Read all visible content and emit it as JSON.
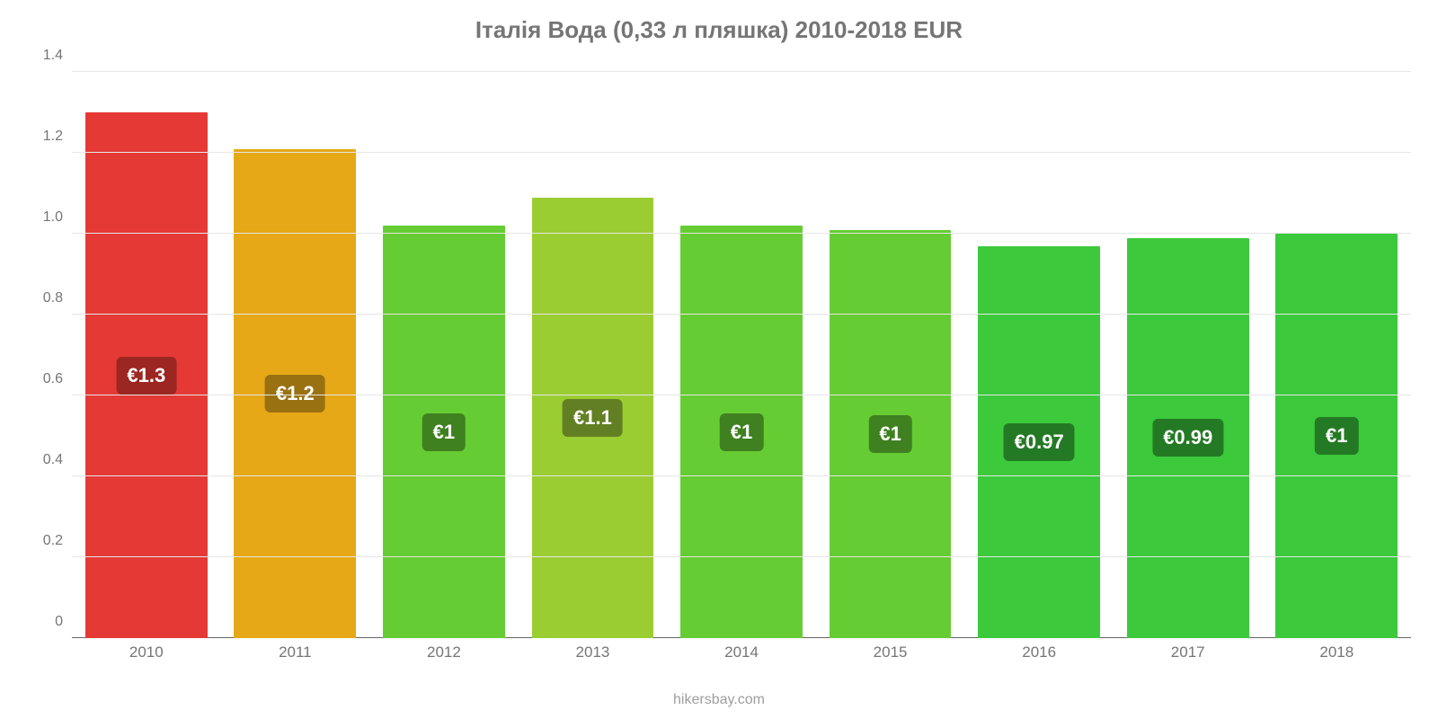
{
  "chart": {
    "type": "bar",
    "title": "Італія Вода (0,33 л пляшка) 2010-2018 EUR",
    "title_fontsize": 26,
    "title_color": "#757575",
    "attribution": "hikersbay.com",
    "attribution_fontsize": 16,
    "attribution_color": "#9e9e9e",
    "background_color": "#ffffff",
    "grid_color": "#e6e6e6",
    "baseline_color": "#666666",
    "y_axis": {
      "min": 0,
      "max": 1.4,
      "ticks": [
        0,
        0.2,
        0.4,
        0.6,
        0.8,
        1.0,
        1.2,
        1.4
      ],
      "tick_labels": [
        "0",
        "0.2",
        "0.4",
        "0.6",
        "0.8",
        "1.0",
        "1.2",
        "1.4"
      ],
      "tick_fontsize": 16,
      "tick_color": "#757575"
    },
    "x_axis": {
      "categories": [
        "2010",
        "2011",
        "2012",
        "2013",
        "2014",
        "2015",
        "2016",
        "2017",
        "2018"
      ],
      "tick_fontsize": 17,
      "tick_color": "#757575"
    },
    "bars": [
      {
        "value": 1.3,
        "label": "€1.3",
        "fill": "#e53935",
        "label_bg": "#9c2622"
      },
      {
        "value": 1.21,
        "label": "€1.2",
        "fill": "#e6a817",
        "label_bg": "#9a7110"
      },
      {
        "value": 1.02,
        "label": "€1",
        "fill": "#66cc33",
        "label_bg": "#3f8020"
      },
      {
        "value": 1.09,
        "label": "€1.1",
        "fill": "#9acd32",
        "label_bg": "#637f23"
      },
      {
        "value": 1.02,
        "label": "€1",
        "fill": "#66cc33",
        "label_bg": "#3f8020"
      },
      {
        "value": 1.01,
        "label": "€1",
        "fill": "#66cc33",
        "label_bg": "#3f8020"
      },
      {
        "value": 0.97,
        "label": "€0.97",
        "fill": "#3cc93c",
        "label_bg": "#247a24"
      },
      {
        "value": 0.99,
        "label": "€0.99",
        "fill": "#3cc93c",
        "label_bg": "#247a24"
      },
      {
        "value": 1.0,
        "label": "€1",
        "fill": "#3cc93c",
        "label_bg": "#247a24"
      }
    ],
    "bar_width_ratio": 0.82,
    "value_label_fontsize": 22,
    "value_label_color": "#ffffff",
    "value_label_radius": 6
  }
}
